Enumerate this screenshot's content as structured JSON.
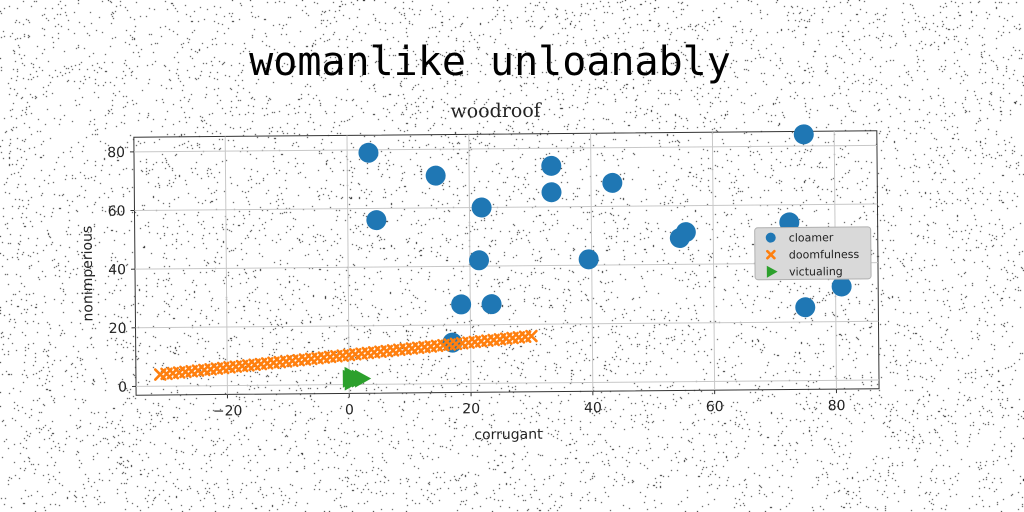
{
  "figure": {
    "suptitle": "womanlike unloanably"
  },
  "chart_data": {
    "type": "scatter",
    "title": "woodroof",
    "xlabel": "corrugant",
    "ylabel": "nonimperious",
    "xlim": [
      -35,
      87
    ],
    "ylim": [
      -3,
      85
    ],
    "xticks": [
      -20,
      0,
      20,
      40,
      60,
      80
    ],
    "yticks": [
      0,
      20,
      40,
      60,
      80
    ],
    "grid": true,
    "legend_position": "center-right",
    "series": [
      {
        "name": "cloamer",
        "marker": "circle",
        "color": "#1f77b4",
        "points": [
          [
            3.5,
            79
          ],
          [
            14.5,
            71
          ],
          [
            4.7,
            56
          ],
          [
            22,
            60
          ],
          [
            33.5,
            74
          ],
          [
            33.5,
            65
          ],
          [
            43.5,
            68
          ],
          [
            21.5,
            42
          ],
          [
            39.5,
            42
          ],
          [
            54.5,
            49
          ],
          [
            55.5,
            51
          ],
          [
            72.5,
            54
          ],
          [
            75,
            84
          ],
          [
            18.5,
            27
          ],
          [
            23.5,
            27
          ],
          [
            17,
            14
          ],
          [
            75,
            25
          ],
          [
            81,
            32
          ]
        ]
      },
      {
        "name": "doomfulness",
        "marker": "x",
        "color": "#ff7f0e",
        "x_range": [
          -31,
          30
        ],
        "y_range": [
          4,
          16
        ],
        "count": 60
      },
      {
        "name": "victualing",
        "marker": "triangle-right",
        "color": "#2ca02c",
        "points": [
          [
            0,
            2
          ],
          [
            0.5,
            2
          ],
          [
            1,
            2
          ],
          [
            1.5,
            2
          ],
          [
            2,
            2
          ],
          [
            0.3,
            1
          ],
          [
            0.3,
            3
          ]
        ]
      }
    ]
  }
}
